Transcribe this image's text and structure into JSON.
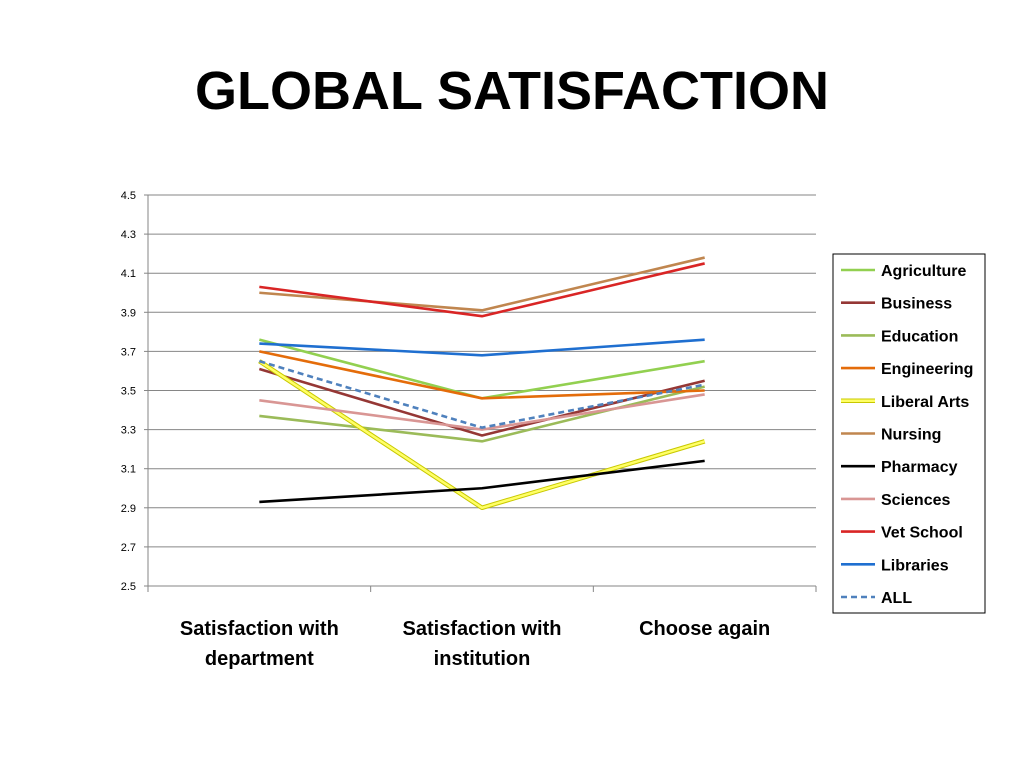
{
  "slide": {
    "title": "GLOBAL SATISFACTION"
  },
  "chart_data": {
    "type": "line",
    "title": "GLOBAL SATISFACTION",
    "xlabel": "",
    "ylabel": "",
    "categories": [
      [
        "Satisfaction with",
        "department"
      ],
      [
        "Satisfaction with",
        "institution"
      ],
      [
        "Choose again"
      ]
    ],
    "ylim": [
      2.5,
      4.5
    ],
    "yticks": [
      "2.5",
      "2.7",
      "2.9",
      "3.1",
      "3.3",
      "3.5",
      "3.7",
      "3.9",
      "4.1",
      "4.3",
      "4.5"
    ],
    "grid": true,
    "legend": "right",
    "series": [
      {
        "name": "Agriculture",
        "color": "#92D050",
        "dashed": false,
        "values": [
          3.76,
          3.46,
          3.65
        ]
      },
      {
        "name": "Business",
        "color": "#953735",
        "dashed": false,
        "values": [
          3.61,
          3.27,
          3.55
        ]
      },
      {
        "name": "Education",
        "color": "#9BBB59",
        "dashed": false,
        "values": [
          3.37,
          3.24,
          3.52
        ]
      },
      {
        "name": "Engineering",
        "color": "#E46C0A",
        "dashed": false,
        "values": [
          3.7,
          3.46,
          3.5
        ]
      },
      {
        "name": "Liberal Arts",
        "color": "#FFFF66",
        "dashed": false,
        "values": [
          3.65,
          2.9,
          3.24
        ]
      },
      {
        "name": "Nursing",
        "color": "#C0864F",
        "dashed": false,
        "values": [
          4.0,
          3.91,
          4.18
        ]
      },
      {
        "name": "Pharmacy",
        "color": "#000000",
        "dashed": false,
        "values": [
          2.93,
          3.0,
          3.14
        ]
      },
      {
        "name": "Sciences",
        "color": "#D99694",
        "dashed": false,
        "values": [
          3.45,
          3.3,
          3.48
        ]
      },
      {
        "name": "Vet School",
        "color": "#D92525",
        "dashed": false,
        "values": [
          4.03,
          3.88,
          4.15
        ]
      },
      {
        "name": "Libraries",
        "color": "#1F6FD0",
        "dashed": false,
        "values": [
          3.74,
          3.68,
          3.76
        ]
      },
      {
        "name": "ALL",
        "color": "#4F81BD",
        "dashed": true,
        "values": [
          3.65,
          3.31,
          3.53
        ]
      }
    ]
  }
}
